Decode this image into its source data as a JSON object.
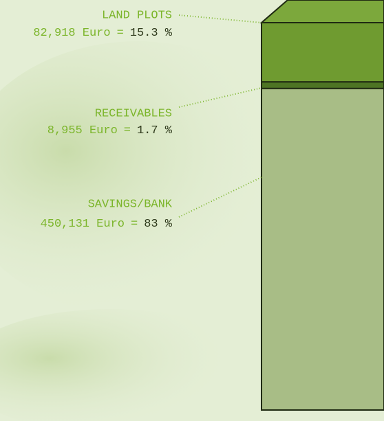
{
  "chart_data": {
    "type": "stacked-column",
    "categories": [
      "LAND PLOTS",
      "RECEIVABLES",
      "SAVINGS/BANK"
    ],
    "values": [
      82918,
      8955,
      450131
    ],
    "value_labels": [
      "82,918 Euro",
      "8,955 Euro",
      "450,131 Euro"
    ],
    "separator": "=",
    "percents": [
      15.3,
      1.7,
      83
    ],
    "percent_labels": [
      "15.3 %",
      "1.7 %",
      "83 %"
    ],
    "colors": [
      "#6f9b30",
      "#4d7424",
      "#a8bd86"
    ],
    "ylim": [
      0,
      100
    ]
  }
}
